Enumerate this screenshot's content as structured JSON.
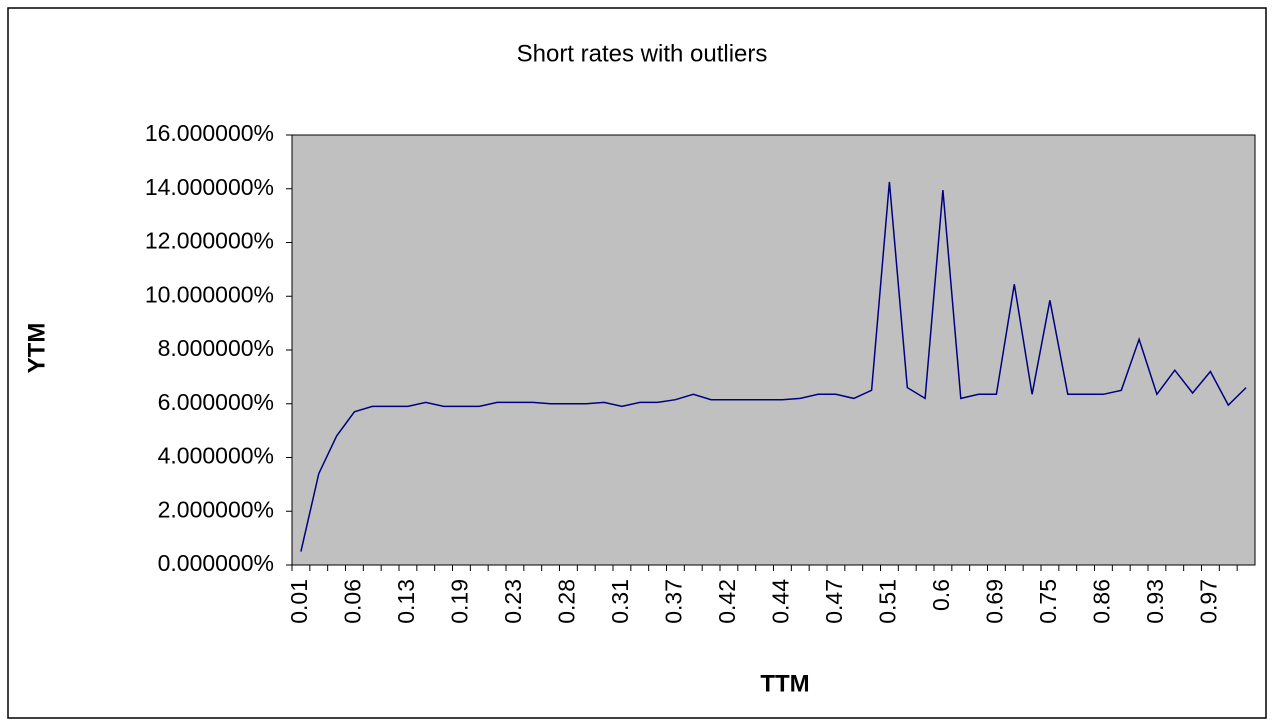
{
  "chart_data": {
    "type": "line",
    "title": "Short rates with outliers",
    "x_label": "TTM",
    "y_label": "YTM",
    "categories": [
      "0.01",
      null,
      null,
      "0.06",
      null,
      null,
      "0.13",
      null,
      null,
      "0.19",
      null,
      null,
      "0.23",
      null,
      null,
      "0.28",
      null,
      null,
      "0.31",
      null,
      null,
      "0.37",
      null,
      null,
      "0.42",
      null,
      null,
      "0.44",
      null,
      null,
      "0.47",
      null,
      null,
      "0.51",
      null,
      null,
      "0.6",
      null,
      null,
      "0.69",
      null,
      null,
      "0.75",
      null,
      null,
      "0.86",
      null,
      null,
      "0.93",
      null,
      null,
      "0.97",
      null,
      null
    ],
    "series": [
      {
        "name": "YTM",
        "color": "#000080",
        "values": [
          0.5,
          3.4,
          4.8,
          5.7,
          5.9,
          5.9,
          5.9,
          6.05,
          5.9,
          5.9,
          5.9,
          6.05,
          6.05,
          6.05,
          6.0,
          6.0,
          6.0,
          6.05,
          5.9,
          6.05,
          6.05,
          6.15,
          6.35,
          6.15,
          6.15,
          6.15,
          6.15,
          6.15,
          6.2,
          6.35,
          6.35,
          6.2,
          6.5,
          14.25,
          6.6,
          6.2,
          13.95,
          6.2,
          6.35,
          6.35,
          10.45,
          6.35,
          9.85,
          6.35,
          6.35,
          6.35,
          6.5,
          8.4,
          6.35,
          7.25,
          6.4,
          7.2,
          5.95,
          6.6
        ]
      }
    ],
    "ylim": [
      0,
      16
    ],
    "yticks": [
      {
        "value": 0,
        "label": "0.000000%"
      },
      {
        "value": 2,
        "label": "2.000000%"
      },
      {
        "value": 4,
        "label": "4.000000%"
      },
      {
        "value": 6,
        "label": "6.000000%"
      },
      {
        "value": 8,
        "label": "8.000000%"
      },
      {
        "value": 10,
        "label": "10.000000%"
      },
      {
        "value": 12,
        "label": "12.000000%"
      },
      {
        "value": 14,
        "label": "14.000000%"
      },
      {
        "value": 16,
        "label": "16.000000%"
      }
    ],
    "plot_background": "#c0c0c0"
  }
}
